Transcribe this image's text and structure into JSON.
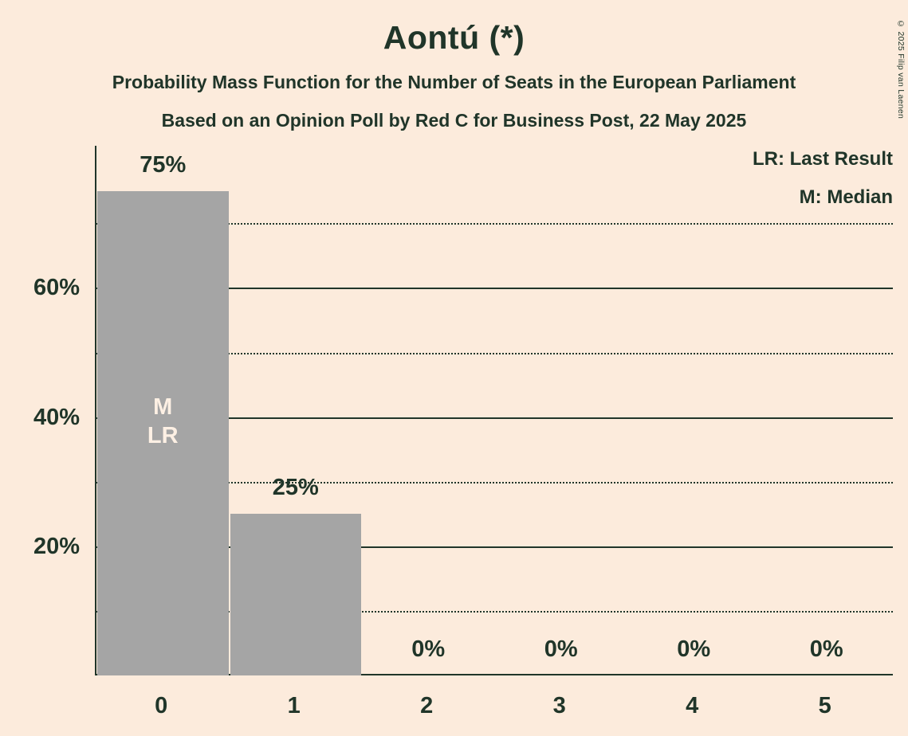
{
  "title": "Aontú (*)",
  "subtitle_line1": "Probability Mass Function for the Number of Seats in the European Parliament",
  "subtitle_line2": "Based on an Opinion Poll by Red C for Business Post, 22 May 2025",
  "copyright": "© 2025 Filip van Laenen",
  "legend": {
    "last_result": "LR: Last Result",
    "median": "M: Median"
  },
  "colors": {
    "background": "#fcebdc",
    "bar": "#a5a5a5",
    "text": "#203529",
    "bar_annotation": "#fdf0e4"
  },
  "chart_data": {
    "type": "bar",
    "title": "Aontú (*)",
    "xlabel": "",
    "ylabel": "",
    "categories": [
      "0",
      "1",
      "2",
      "3",
      "4",
      "5"
    ],
    "values": [
      75,
      25,
      0,
      0,
      0,
      0
    ],
    "value_labels": [
      "75%",
      "25%",
      "0%",
      "0%",
      "0%",
      "0%"
    ],
    "ylim": [
      0,
      82
    ],
    "yticks": [
      {
        "value": 20,
        "label": "20%"
      },
      {
        "value": 40,
        "label": "40%"
      },
      {
        "value": 60,
        "label": "60%"
      }
    ],
    "solid_gridlines": [
      20,
      40,
      60
    ],
    "dotted_gridlines": [
      10,
      30,
      50,
      70
    ],
    "grid": true,
    "legend_position": "top-right",
    "bar_annotations": [
      {
        "category": "0",
        "lines": [
          "M",
          "LR"
        ]
      }
    ]
  }
}
